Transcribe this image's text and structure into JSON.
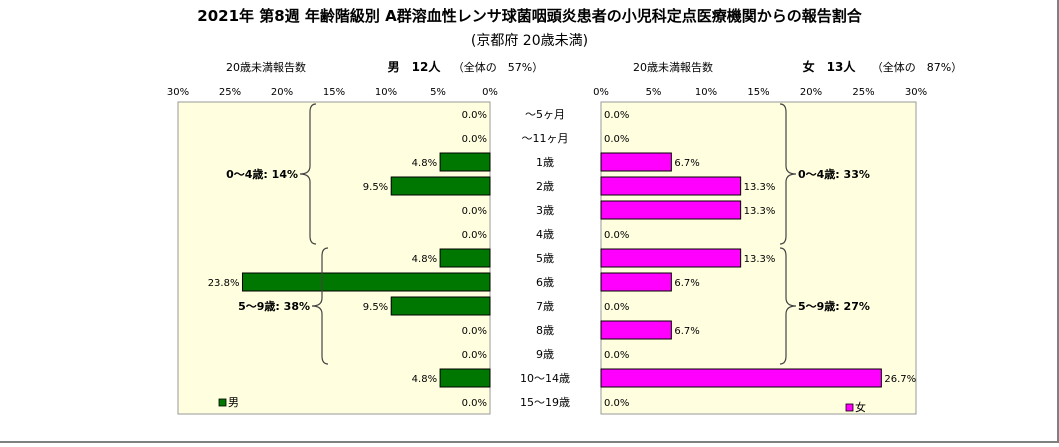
{
  "title": "2021年 第8週 年齢階級別 A群溶血性レンサ球菌咽頭炎患者の小児科定点医療機関からの報告割合",
  "subtitle": "(京都府 20歳未満)",
  "chart_data": {
    "type": "bar",
    "categories": [
      "～5ヶ月",
      "～11ヶ月",
      "1歳",
      "2歳",
      "3歳",
      "4歳",
      "5歳",
      "6歳",
      "7歳",
      "8歳",
      "9歳",
      "10～14歳",
      "15～19歳"
    ],
    "series": [
      {
        "name": "男",
        "values": [
          0.0,
          0.0,
          4.8,
          9.5,
          0.0,
          0.0,
          4.8,
          23.8,
          9.5,
          0.0,
          0.0,
          4.8,
          0.0
        ],
        "labels": [
          "0.0%",
          "0.0%",
          "4.8%",
          "9.5%",
          "0.0%",
          "0.0%",
          "4.8%",
          "23.8%",
          "9.5%",
          "0.0%",
          "0.0%",
          "4.8%",
          "0.0%"
        ],
        "color": "#007700",
        "side_label": "20歳未満報告数",
        "count_label": "男　12人",
        "share_label": "（全体の　57%）",
        "groups": [
          {
            "label": "0～4歳: 14%",
            "from": 0,
            "to": 5
          },
          {
            "label": "5～9歳: 38%",
            "from": 6,
            "to": 10
          }
        ]
      },
      {
        "name": "女",
        "values": [
          0.0,
          0.0,
          6.7,
          13.3,
          13.3,
          0.0,
          13.3,
          6.7,
          0.0,
          6.7,
          0.0,
          26.7,
          0.0
        ],
        "labels": [
          "0.0%",
          "0.0%",
          "6.7%",
          "13.3%",
          "13.3%",
          "0.0%",
          "13.3%",
          "6.7%",
          "0.0%",
          "6.7%",
          "0.0%",
          "26.7%",
          "0.0%"
        ],
        "color": "#FF00FF",
        "side_label": "20歳未満報告数",
        "count_label": "女　13人",
        "share_label": "（全体の　87%）",
        "groups": [
          {
            "label": "0～4歳: 33%",
            "from": 0,
            "to": 5
          },
          {
            "label": "5～9歳: 27%",
            "from": 6,
            "to": 10
          }
        ]
      }
    ],
    "xlim": [
      0,
      30
    ],
    "ticks": [
      0,
      5,
      10,
      15,
      20,
      25,
      30
    ],
    "tick_labels": [
      "0%",
      "5%",
      "10%",
      "15%",
      "20%",
      "25%",
      "30%"
    ],
    "plot_background": "#FFFFE0",
    "grid": false,
    "legend_position": "bottom-left (male), bottom-right (female)"
  }
}
